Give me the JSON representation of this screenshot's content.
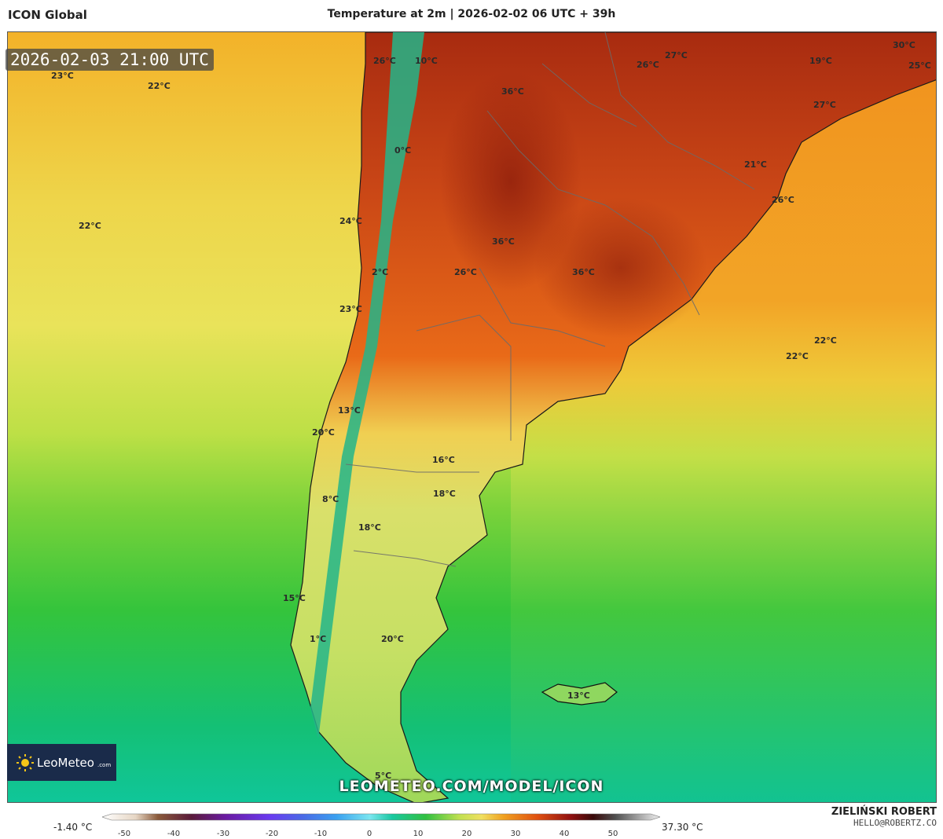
{
  "header": {
    "model": "ICON Global",
    "title": "Temperature at 2m | 2026-02-02 06 UTC + 39h"
  },
  "map": {
    "valid_time": "2026-02-03 21:00 UTC",
    "url": "LEOMETEO.COM/MODEL/ICON",
    "labels": [
      {
        "id": "l1",
        "text": "23°C"
      },
      {
        "id": "l2",
        "text": "22°C"
      },
      {
        "id": "l3",
        "text": "22°C"
      },
      {
        "id": "l4",
        "text": "26°C"
      },
      {
        "id": "l5",
        "text": "10°C"
      },
      {
        "id": "l6",
        "text": "0°C"
      },
      {
        "id": "l7",
        "text": "24°C"
      },
      {
        "id": "l8",
        "text": "2°C"
      },
      {
        "id": "l9",
        "text": "23°C"
      },
      {
        "id": "l10",
        "text": "36°C"
      },
      {
        "id": "l11",
        "text": "36°C"
      },
      {
        "id": "l12",
        "text": "26°C"
      },
      {
        "id": "l13",
        "text": "36°C"
      },
      {
        "id": "l14",
        "text": "26°C"
      },
      {
        "id": "l15",
        "text": "27°C"
      },
      {
        "id": "l16",
        "text": "19°C"
      },
      {
        "id": "l17",
        "text": "30°C"
      },
      {
        "id": "l18",
        "text": "25°C"
      },
      {
        "id": "l19",
        "text": "27°C"
      },
      {
        "id": "l20",
        "text": "21°C"
      },
      {
        "id": "l21",
        "text": "26°C"
      },
      {
        "id": "l22",
        "text": "22°C"
      },
      {
        "id": "l23",
        "text": "22°C"
      },
      {
        "id": "l24",
        "text": "13°C"
      },
      {
        "id": "l25",
        "text": "20°C"
      },
      {
        "id": "l26",
        "text": "16°C"
      },
      {
        "id": "l27",
        "text": "18°C"
      },
      {
        "id": "l28",
        "text": "8°C"
      },
      {
        "id": "l29",
        "text": "18°C"
      },
      {
        "id": "l30",
        "text": "15°C"
      },
      {
        "id": "l31",
        "text": "1°C"
      },
      {
        "id": "l32",
        "text": "20°C"
      },
      {
        "id": "l33",
        "text": "13°C"
      },
      {
        "id": "l34",
        "text": "5°C"
      }
    ]
  },
  "logo": {
    "name": "LeoMeteo",
    "domain": ".com"
  },
  "legend": {
    "min": "-1.40 °C",
    "max": "37.30 °C",
    "ticks": [
      "-50",
      "-40",
      "-30",
      "-20",
      "-10",
      "0",
      "10",
      "20",
      "30",
      "40",
      "50"
    ]
  },
  "author": {
    "name": "ZIELIŃSKI ROBERT",
    "email": "HELLO@ROBERTZ.CO"
  },
  "colors": {
    "hot": "#b53a12",
    "warm": "#f39d1e",
    "mild": "#eed64a",
    "cool": "#4fc83c",
    "cold": "#16c08a"
  }
}
